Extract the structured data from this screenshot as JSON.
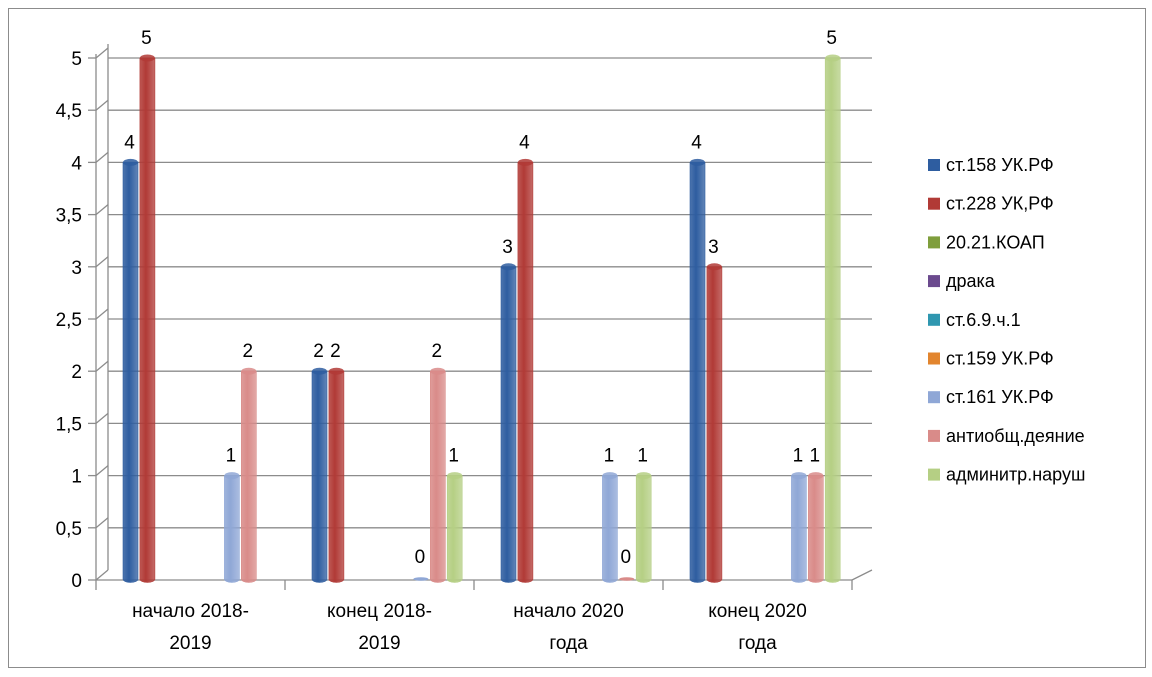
{
  "chart_data": {
    "type": "bar",
    "categories": [
      "начало 2018-\n2019",
      "конец 2018-\n2019",
      "начало 2020\nгода",
      "конец 2020\nгода"
    ],
    "ylim": [
      0,
      5
    ],
    "yticks": [
      "0",
      "0,5",
      "1",
      "1,5",
      "2",
      "2,5",
      "3",
      "3,5",
      "4",
      "4,5",
      "5"
    ],
    "grid": true,
    "legend_position": "right",
    "series": [
      {
        "name": "ст.158 УК.РФ",
        "color": "#2e5da0",
        "values": [
          4,
          2,
          3,
          4
        ]
      },
      {
        "name": "ст.228 УК,РФ",
        "color": "#b13a36",
        "values": [
          5,
          2,
          4,
          3
        ]
      },
      {
        "name": "20.21.КОАП",
        "color": "#7f9e3c",
        "values": [
          null,
          null,
          null,
          null
        ]
      },
      {
        "name": "драка",
        "color": "#6b4a8e",
        "values": [
          null,
          null,
          null,
          null
        ]
      },
      {
        "name": "ст.6.9.ч.1",
        "color": "#2f97b0",
        "values": [
          null,
          null,
          null,
          null
        ]
      },
      {
        "name": "ст.159 УК.РФ",
        "color": "#e2852e",
        "values": [
          null,
          null,
          null,
          null
        ]
      },
      {
        "name": "ст.161 УК.РФ",
        "color": "#8fa7d6",
        "values": [
          1,
          0,
          1,
          1
        ]
      },
      {
        "name": "антиобщ.деяние",
        "color": "#d98b89",
        "values": [
          2,
          2,
          0,
          1
        ]
      },
      {
        "name": "админитр.наруш",
        "color": "#b5cf84",
        "values": [
          null,
          1,
          1,
          5
        ]
      }
    ],
    "data_labels": [
      {
        "series": 0,
        "category": 0,
        "text": "4"
      },
      {
        "series": 1,
        "category": 0,
        "text": "5"
      },
      {
        "series": 6,
        "category": 0,
        "text": "1"
      },
      {
        "series": 7,
        "category": 0,
        "text": "2"
      },
      {
        "series": 0,
        "category": 1,
        "text": "2"
      },
      {
        "series": 1,
        "category": 1,
        "text": "2"
      },
      {
        "series": 6,
        "category": 1,
        "text": "0"
      },
      {
        "series": 7,
        "category": 1,
        "text": "2"
      },
      {
        "series": 8,
        "category": 1,
        "text": "1"
      },
      {
        "series": 0,
        "category": 2,
        "text": "3"
      },
      {
        "series": 1,
        "category": 2,
        "text": "4"
      },
      {
        "series": 6,
        "category": 2,
        "text": "1"
      },
      {
        "series": 7,
        "category": 2,
        "text": "0"
      },
      {
        "series": 8,
        "category": 2,
        "text": "1"
      },
      {
        "series": 0,
        "category": 3,
        "text": "4"
      },
      {
        "series": 1,
        "category": 3,
        "text": "3"
      },
      {
        "series": 6,
        "category": 3,
        "text": "1"
      },
      {
        "series": 7,
        "category": 3,
        "text": "1"
      },
      {
        "series": 8,
        "category": 3,
        "text": "5"
      }
    ]
  }
}
